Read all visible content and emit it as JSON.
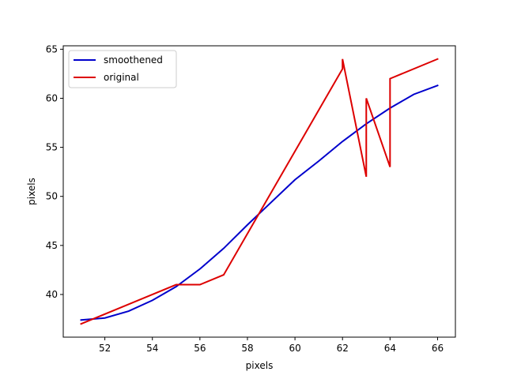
{
  "chart_data": {
    "type": "line",
    "xlabel": "pixels",
    "ylabel": "pixels",
    "xlim": [
      50.25,
      66.75
    ],
    "ylim": [
      35.65,
      65.35
    ],
    "xticks": [
      52,
      54,
      56,
      58,
      60,
      62,
      64,
      66
    ],
    "yticks": [
      40,
      45,
      50,
      55,
      60,
      65
    ],
    "grid": false,
    "legend_position": "top-left",
    "series": [
      {
        "name": "smoothened",
        "color": "#0000cc",
        "x": [
          51,
          52,
          53,
          54,
          55,
          56,
          57,
          58,
          59,
          60,
          61,
          62,
          63,
          64,
          65,
          66
        ],
        "y": [
          37.4,
          37.6,
          38.3,
          39.4,
          40.8,
          42.6,
          44.7,
          47.1,
          49.4,
          51.7,
          53.6,
          55.6,
          57.4,
          59.0,
          60.4,
          61.3
        ]
      },
      {
        "name": "original",
        "color": "#dd0000",
        "x": [
          51,
          55,
          56,
          57,
          62,
          62,
          63,
          63,
          64,
          64,
          66
        ],
        "y": [
          37,
          41,
          41,
          42,
          63,
          64,
          52,
          60,
          53,
          62,
          64
        ]
      }
    ]
  }
}
